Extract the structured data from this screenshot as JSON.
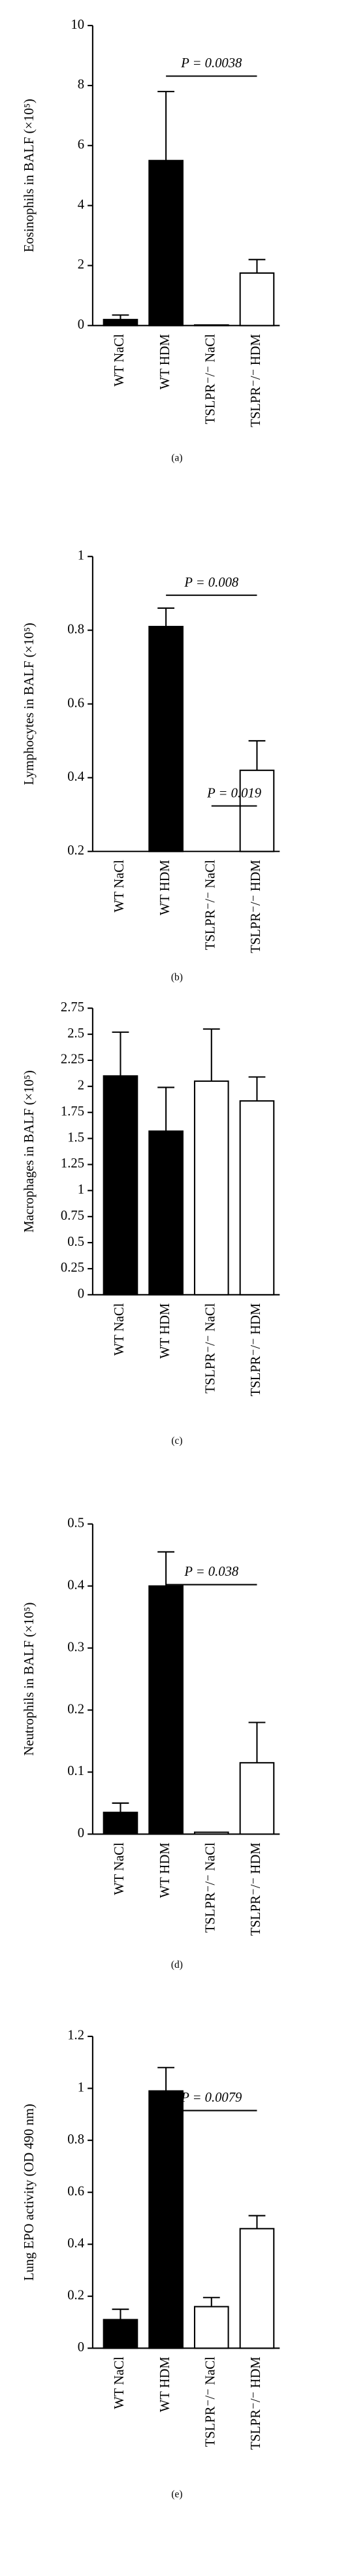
{
  "chart_data": [
    {
      "type": "bar",
      "panel_label": "(a)",
      "y_label": "Eosinophils in BALF (×10⁵)",
      "categories": [
        "WT NaCl",
        "WT HDM",
        "TSLPR⁻/⁻ NaCl",
        "TSLPR⁻/⁻ HDM"
      ],
      "values": [
        0.2,
        5.5,
        0.02,
        1.75
      ],
      "errors": [
        0.15,
        2.3,
        null,
        0.45
      ],
      "colors": [
        "#000000",
        "#000000",
        "#ffffff",
        "#ffffff"
      ],
      "ylim": [
        0,
        10
      ],
      "yticks": [
        0,
        2,
        4,
        6,
        8,
        10
      ],
      "annotations": [
        "P = 0.0038"
      ]
    },
    {
      "type": "bar",
      "panel_label": "(b)",
      "y_label": "Lymphocytes in BALF (×10⁵)",
      "categories": [
        "WT NaCl",
        "WT HDM",
        "TSLPR⁻/⁻ NaCl",
        "TSLPR⁻/⁻ HDM"
      ],
      "values": [
        null,
        0.81,
        null,
        0.42
      ],
      "errors": [
        null,
        0.05,
        null,
        0.08
      ],
      "colors": [
        "#000000",
        "#000000",
        "#ffffff",
        "#ffffff"
      ],
      "ylim": [
        0.2,
        1
      ],
      "yticks": [
        0.2,
        0.4,
        0.6,
        0.8,
        1
      ],
      "annotations": [
        "P = 0.008",
        "P = 0.019"
      ]
    },
    {
      "type": "bar",
      "panel_label": "(c)",
      "y_label": "Macrophages in BALF (×10⁵)",
      "categories": [
        "WT NaCl",
        "WT HDM",
        "TSLPR⁻/⁻ NaCl",
        "TSLPR⁻/⁻ HDM"
      ],
      "values": [
        2.1,
        1.57,
        2.05,
        1.86
      ],
      "errors": [
        0.42,
        0.42,
        0.5,
        0.23
      ],
      "colors": [
        "#000000",
        "#000000",
        "#ffffff",
        "#ffffff"
      ],
      "ylim": [
        0,
        2.75
      ],
      "yticks": [
        0,
        0.25,
        0.5,
        0.75,
        1,
        1.25,
        1.5,
        1.75,
        2,
        2.25,
        2.5,
        2.75
      ],
      "annotations": []
    },
    {
      "type": "bar",
      "panel_label": "(d)",
      "y_label": "Neutrophils in BALF (×10⁵)",
      "categories": [
        "WT NaCl",
        "WT HDM",
        "TSLPR⁻/⁻ NaCl",
        "TSLPR⁻/⁻ HDM"
      ],
      "values": [
        0.035,
        0.4,
        0.003,
        0.115
      ],
      "errors": [
        0.015,
        0.055,
        null,
        0.065
      ],
      "colors": [
        "#000000",
        "#000000",
        "#ffffff",
        "#ffffff"
      ],
      "ylim": [
        0,
        0.5
      ],
      "yticks": [
        0,
        0.1,
        0.2,
        0.3,
        0.4,
        0.5
      ],
      "annotations": [
        "P = 0.038"
      ]
    },
    {
      "type": "bar",
      "panel_label": "(e)",
      "y_label": "Lung EPO activity (OD 490 nm)",
      "categories": [
        "WT NaCl",
        "WT HDM",
        "TSLPR⁻/⁻ NaCl",
        "TSLPR⁻/⁻ HDM"
      ],
      "values": [
        0.11,
        0.99,
        0.16,
        0.46
      ],
      "errors": [
        0.04,
        0.09,
        0.035,
        0.05
      ],
      "colors": [
        "#000000",
        "#000000",
        "#ffffff",
        "#ffffff"
      ],
      "ylim": [
        0,
        1.2
      ],
      "yticks": [
        0,
        0.2,
        0.4,
        0.6,
        0.8,
        1,
        1.2
      ],
      "annotations": [
        "P = 0.0079"
      ]
    }
  ]
}
